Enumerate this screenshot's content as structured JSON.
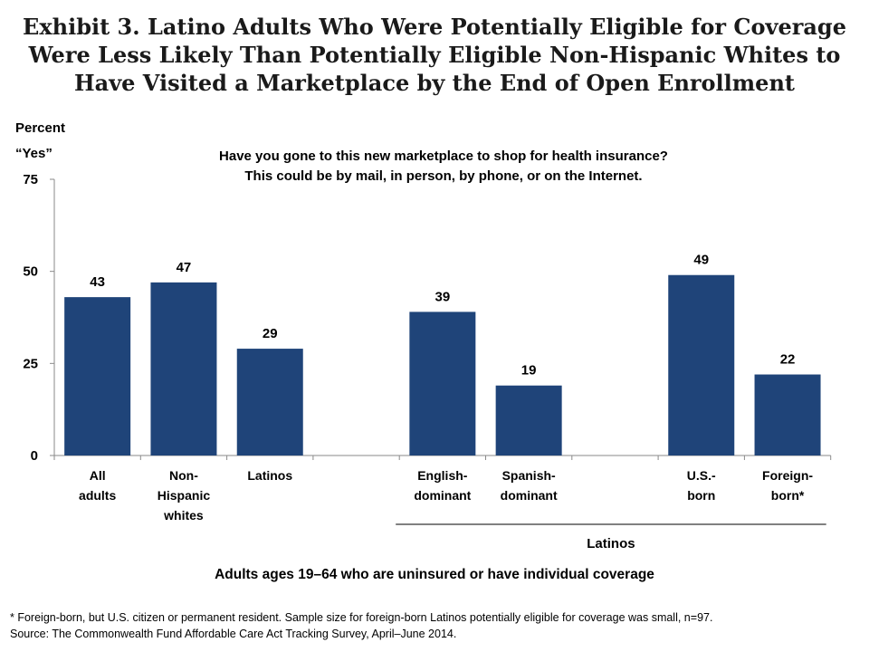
{
  "title_lines": [
    "Exhibit 3. Latino Adults Who Were Potentially Eligible for Coverage",
    "Were Less Likely Than Potentially Eligible Non-Hispanic Whites to",
    "Have Visited a Marketplace by the End of Open Enrollment"
  ],
  "ylabel_lines": [
    "Percent",
    "“Yes”"
  ],
  "question_lines": [
    "Have you gone to this new marketplace to shop for health insurance?",
    "This could be by mail, in person, by phone, or on the Internet."
  ],
  "group_label": "Latinos",
  "xlabel": "Adults ages 19–64 who are uninsured or have individual  coverage",
  "footnotes": [
    "* Foreign-born, but U.S. citizen or permanent resident. Sample size for foreign-born Latinos potentially eligible for coverage was small, n=97.",
    "Source: The Commonwealth Fund Affordable Care Act Tracking Survey, April–June 2014."
  ],
  "chart_data": {
    "type": "bar",
    "categories": [
      [
        "All",
        "adults"
      ],
      [
        "Non-",
        "Hispanic",
        "whites"
      ],
      [
        "Latinos"
      ],
      [],
      [
        "English-",
        "dominant"
      ],
      [
        "Spanish-",
        "dominant"
      ],
      [],
      [
        "U.S.-",
        "born"
      ],
      [
        "Foreign-",
        "born*"
      ]
    ],
    "values": [
      43,
      47,
      29,
      null,
      39,
      19,
      null,
      49,
      22
    ],
    "ylim": [
      0,
      75
    ],
    "yticks": [
      0,
      25,
      50,
      75
    ],
    "bar_color": "#1f4479",
    "grid": false
  }
}
